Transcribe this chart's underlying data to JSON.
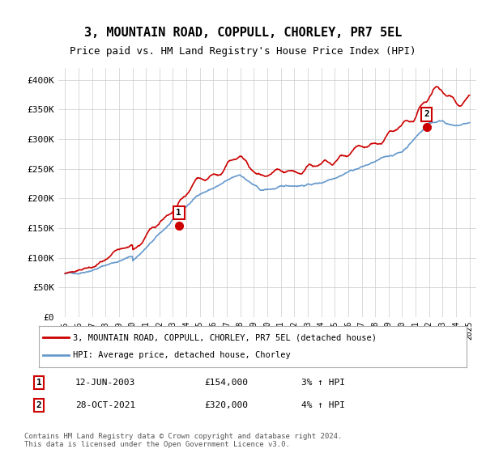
{
  "title": "3, MOUNTAIN ROAD, COPPULL, CHORLEY, PR7 5EL",
  "subtitle": "Price paid vs. HM Land Registry's House Price Index (HPI)",
  "title_fontsize": 11,
  "subtitle_fontsize": 9,
  "ylim": [
    0,
    420000
  ],
  "yticks": [
    0,
    50000,
    100000,
    150000,
    200000,
    250000,
    300000,
    350000,
    400000
  ],
  "background_color": "#ffffff",
  "grid_color": "#cccccc",
  "hpi_line_color": "#6699cc",
  "price_line_color": "#cc0000",
  "sale1_date_num": 2003.44,
  "sale1_price": 154000,
  "sale1_label": "1",
  "sale1_date_str": "12-JUN-2003",
  "sale1_hpi_pct": "3%",
  "sale2_date_num": 2021.82,
  "sale2_price": 320000,
  "sale2_label": "2",
  "sale2_date_str": "28-OCT-2021",
  "sale2_hpi_pct": "4%",
  "legend_label_price": "3, MOUNTAIN ROAD, COPPULL, CHORLEY, PR7 5EL (detached house)",
  "legend_label_hpi": "HPI: Average price, detached house, Chorley",
  "footnote": "Contains HM Land Registry data © Crown copyright and database right 2024.\nThis data is licensed under the Open Government Licence v3.0.",
  "xmin": 1994.5,
  "xmax": 2025.5
}
